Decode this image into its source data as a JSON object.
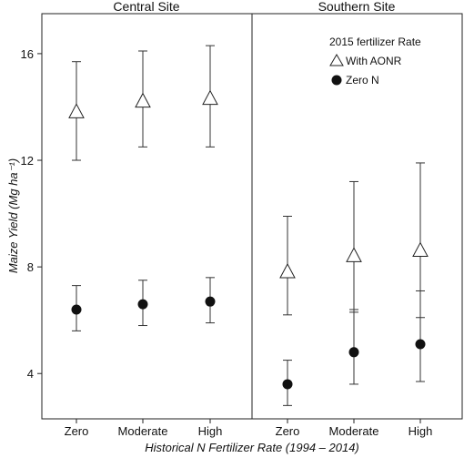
{
  "chart_data": {
    "type": "scatter",
    "xlabel": "Historical N Fertilizer Rate (1994 – 2014)",
    "ylabel": "Maize Yield (Mg ha⁻¹)",
    "ylim": [
      2.3,
      17.5
    ],
    "yticks": [
      4,
      8,
      12,
      16
    ],
    "categories": [
      "Zero",
      "Moderate",
      "High"
    ],
    "grid": false,
    "legend": {
      "title": "2015 fertilizer Rate",
      "position": "top-right",
      "entries": [
        {
          "label": "With AONR",
          "marker": "open-triangle"
        },
        {
          "label": "Zero N",
          "marker": "filled-circle"
        }
      ]
    },
    "panels": [
      {
        "title": "Central Site",
        "series": [
          {
            "name": "With AONR",
            "marker": "open-triangle",
            "values": [
              13.8,
              14.2,
              14.3
            ],
            "err_low": [
              12.0,
              12.5,
              12.5
            ],
            "err_high": [
              15.7,
              16.1,
              16.3
            ]
          },
          {
            "name": "Zero N",
            "marker": "filled-circle",
            "values": [
              6.4,
              6.6,
              6.7
            ],
            "err_low": [
              5.6,
              5.8,
              5.9
            ],
            "err_high": [
              7.3,
              7.5,
              7.6
            ]
          }
        ]
      },
      {
        "title": "Southern Site",
        "series": [
          {
            "name": "With AONR",
            "marker": "open-triangle",
            "values": [
              7.8,
              8.4,
              8.6
            ],
            "err_low": [
              6.2,
              6.3,
              6.1
            ],
            "err_high": [
              9.9,
              11.2,
              11.9
            ]
          },
          {
            "name": "Zero N",
            "marker": "filled-circle",
            "values": [
              3.6,
              4.8,
              5.1
            ],
            "err_low": [
              2.8,
              3.6,
              3.7
            ],
            "err_high": [
              4.5,
              6.4,
              7.1
            ]
          }
        ]
      }
    ]
  }
}
